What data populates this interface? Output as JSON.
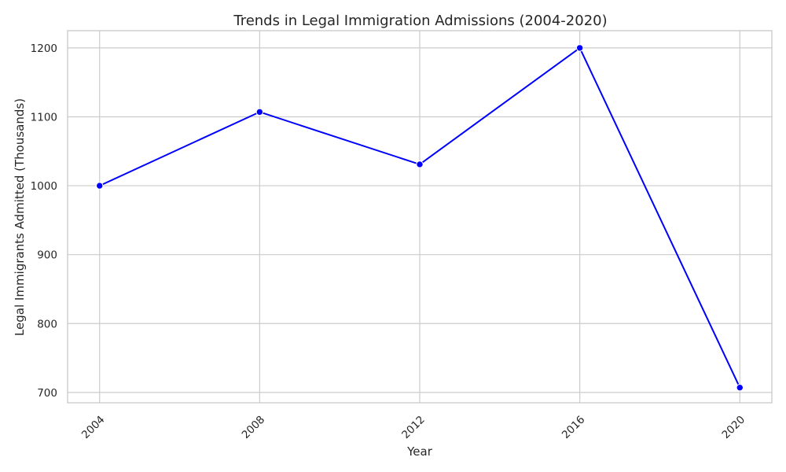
{
  "chart_data": {
    "type": "line",
    "title": "Trends in Legal Immigration Admissions (2004-2020)",
    "xlabel": "Year",
    "ylabel": "Legal Immigrants Admitted (Thousands)",
    "x": [
      2004,
      2008,
      2012,
      2016,
      2020
    ],
    "x_tick_labels": [
      "2004",
      "2008",
      "2012",
      "2016",
      "2020"
    ],
    "y_ticks": [
      700,
      800,
      900,
      1000,
      1100,
      1200
    ],
    "y_tick_labels": [
      "700",
      "800",
      "900",
      "1000",
      "1100",
      "1200"
    ],
    "xlim": [
      2003.2,
      2020.8
    ],
    "ylim": [
      685,
      1225
    ],
    "grid": true,
    "legend": "none",
    "series": [
      {
        "values": [
          1000,
          1107,
          1031,
          1200,
          707
        ],
        "color": "#0000ff"
      }
    ]
  }
}
